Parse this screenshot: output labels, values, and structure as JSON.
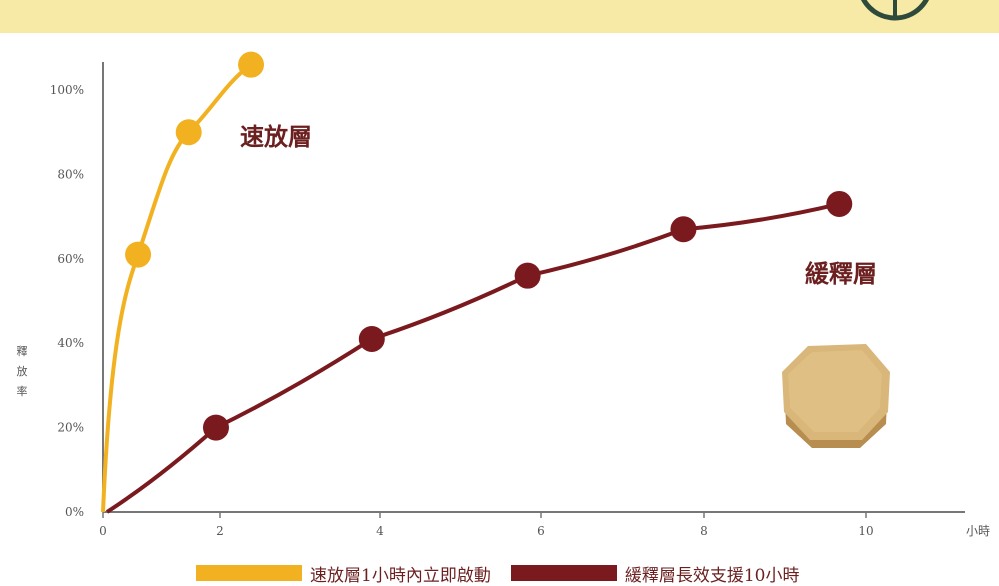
{
  "colors": {
    "fast": "#f2b120",
    "slow": "#7a1a1f",
    "band": "#f7e9a6",
    "axis": "#777777"
  },
  "chart_data": {
    "type": "line",
    "ylabel": "釋放率",
    "xlabel": "小時",
    "x_ticks": [
      "0",
      "2",
      "4",
      "6",
      "8",
      "10"
    ],
    "y_ticks": [
      "0%",
      "20%",
      "40%",
      "60%",
      "80%",
      "100%"
    ],
    "xlim": [
      0,
      11.5
    ],
    "ylim": [
      0,
      100
    ],
    "series": [
      {
        "name": "速放層",
        "color": "#f2b120",
        "x": [
          0.45,
          1.1,
          1.9
        ],
        "y": [
          61,
          90,
          106
        ]
      },
      {
        "name": "緩釋層",
        "color": "#7a1a1f",
        "x": [
          1.45,
          3.45,
          5.45,
          7.45,
          9.45
        ],
        "y": [
          20,
          41,
          56,
          67,
          73
        ]
      }
    ],
    "legend": [
      {
        "text": "速放層1小時內立即啟動",
        "color": "#f2b120"
      },
      {
        "text": "緩釋層長效支援10小時",
        "color": "#7a1a1f"
      }
    ]
  }
}
